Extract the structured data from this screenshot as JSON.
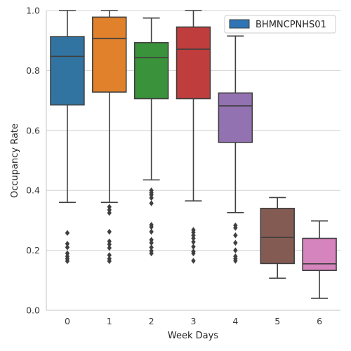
{
  "chart_data": {
    "type": "box",
    "xlabel": "Week Days",
    "ylabel": "Occupancy Rate",
    "categories": [
      "0",
      "1",
      "2",
      "3",
      "4",
      "5",
      "6"
    ],
    "ylim": [
      0.0,
      1.0
    ],
    "yticks": [
      "0.0",
      "0.2",
      "0.4",
      "0.6",
      "0.8",
      "1.0"
    ],
    "grid": "horizontal",
    "legend": {
      "label": "BHMNCPNHS01",
      "position": "top-right",
      "color": "#2f75b5"
    },
    "colors": [
      "#3274a1",
      "#e1812c",
      "#3a923a",
      "#c03d3e",
      "#9372b2",
      "#845b53",
      "#d684bd"
    ],
    "boxes": [
      {
        "category": "0",
        "whisker_low": 0.36,
        "q1": 0.685,
        "median": 0.847,
        "q3": 0.913,
        "whisker_high": 1.0,
        "outliers": [
          0.258,
          0.222,
          0.21,
          0.19,
          0.18,
          0.172,
          0.164
        ]
      },
      {
        "category": "1",
        "whisker_low": 0.36,
        "q1": 0.728,
        "median": 0.907,
        "q3": 0.978,
        "whisker_high": 1.0,
        "outliers": [
          0.345,
          0.335,
          0.325,
          0.262,
          0.23,
          0.22,
          0.208,
          0.184,
          0.172,
          0.164
        ]
      },
      {
        "category": "2",
        "whisker_low": 0.435,
        "q1": 0.706,
        "median": 0.843,
        "q3": 0.893,
        "whisker_high": 0.975,
        "outliers": [
          0.4,
          0.392,
          0.385,
          0.375,
          0.357,
          0.285,
          0.278,
          0.262,
          0.235,
          0.225,
          0.21,
          0.198,
          0.19
        ]
      },
      {
        "category": "3",
        "whisker_low": 0.365,
        "q1": 0.706,
        "median": 0.871,
        "q3": 0.945,
        "whisker_high": 1.0,
        "outliers": [
          0.268,
          0.26,
          0.25,
          0.24,
          0.228,
          0.212,
          0.196,
          0.19,
          0.165
        ]
      },
      {
        "category": "4",
        "whisker_low": 0.326,
        "q1": 0.56,
        "median": 0.682,
        "q3": 0.725,
        "whisker_high": 0.915,
        "outliers": [
          0.283,
          0.275,
          0.25,
          0.225,
          0.2,
          0.18,
          0.172,
          0.165
        ]
      },
      {
        "category": "5",
        "whisker_low": 0.107,
        "q1": 0.156,
        "median": 0.243,
        "q3": 0.34,
        "whisker_high": 0.376,
        "outliers": []
      },
      {
        "category": "6",
        "whisker_low": 0.04,
        "q1": 0.133,
        "median": 0.155,
        "q3": 0.24,
        "whisker_high": 0.298,
        "outliers": []
      }
    ]
  }
}
